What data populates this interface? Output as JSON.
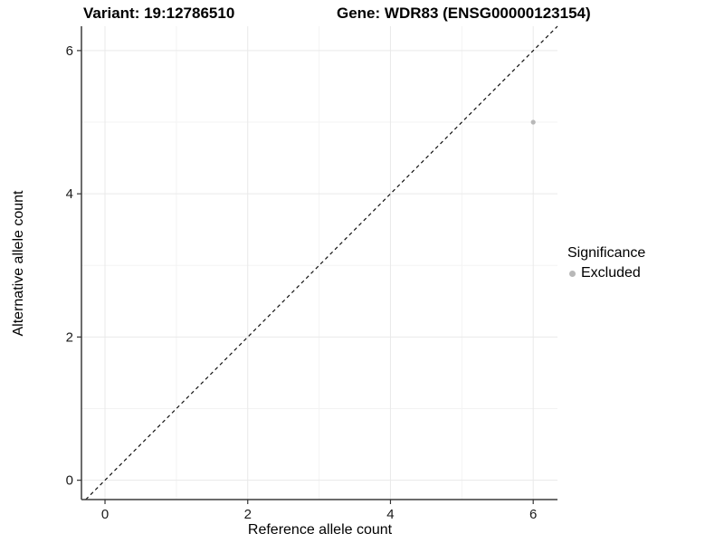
{
  "titles": {
    "variant": "Variant: 19:12786510",
    "gene": "Gene: WDR83 (ENSG00000123154)"
  },
  "chart_data": {
    "type": "scatter",
    "xlabel": "Reference allele count",
    "ylabel": "Alternative allele count",
    "xlim": [
      -0.33,
      6.34
    ],
    "ylim": [
      -0.27,
      6.34
    ],
    "x_ticks": [
      0,
      2,
      4,
      6
    ],
    "y_ticks": [
      0,
      2,
      4,
      6
    ],
    "x_minor_ticks": [
      1,
      3,
      5
    ],
    "y_minor_ticks": [
      1,
      3,
      5
    ],
    "grid": true,
    "points": [
      {
        "x": 6,
        "y": 5,
        "significance": "Excluded"
      }
    ],
    "reference_line": {
      "slope": 1,
      "intercept": 0,
      "style": "dashed"
    },
    "legend": {
      "title": "Significance",
      "position": "right",
      "entries": [
        {
          "label": "Excluded",
          "color": "#b8b8b8"
        }
      ]
    },
    "colors": {
      "point": "#b8b8b8",
      "grid_major": "#e9e9e9",
      "grid_minor": "#f3f3f3",
      "axis_line": "#3c3c3c",
      "tick": "#333333",
      "tick_label": "#1a1a1a",
      "dashed_line": "#111111"
    }
  }
}
